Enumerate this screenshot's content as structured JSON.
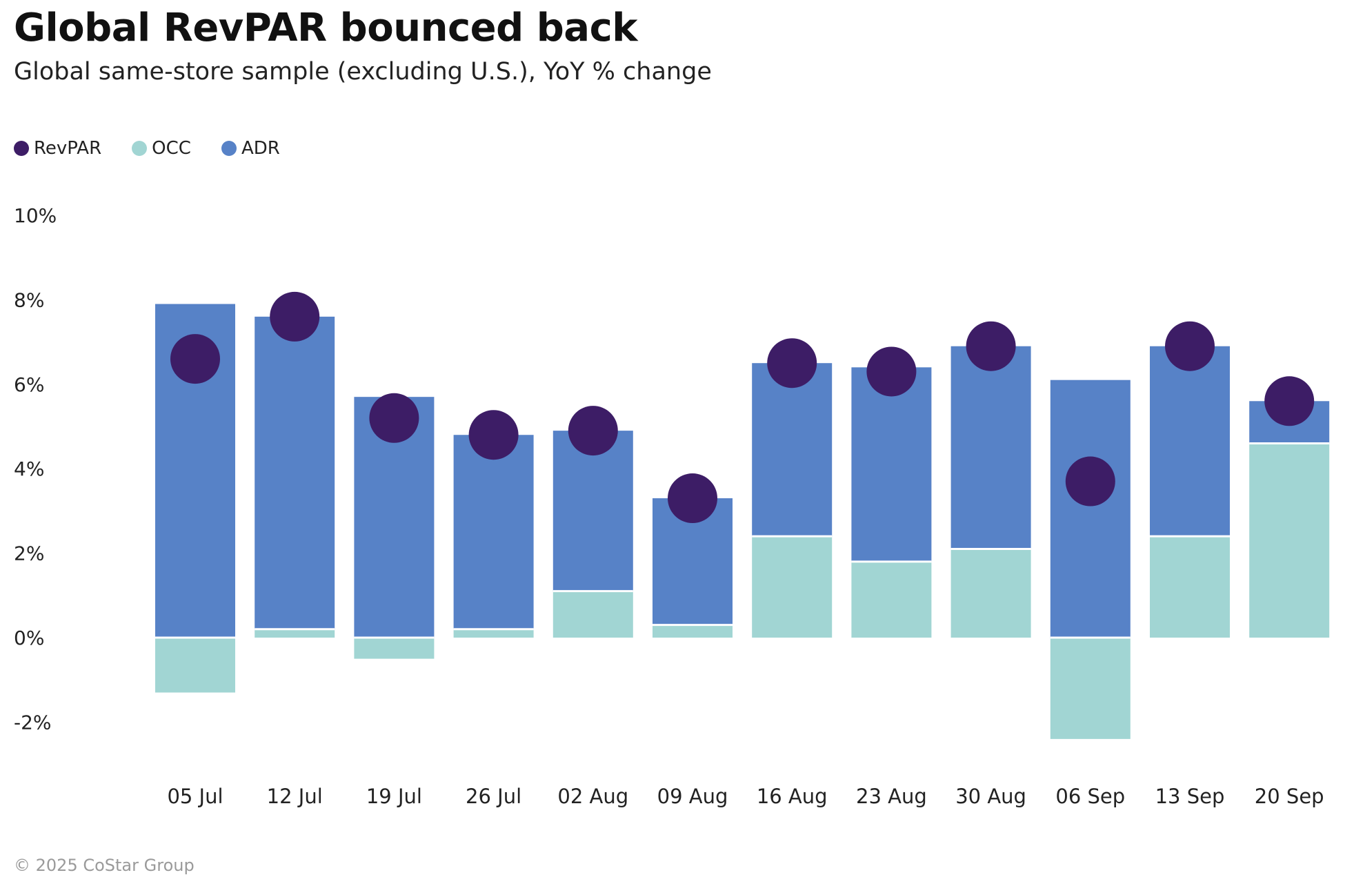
{
  "title": "Global RevPAR bounced back",
  "subtitle": "Global same-store sample (excluding U.S.), YoY % change",
  "footer": "© 2025 CoStar Group",
  "colors": {
    "revpar": "#3d1d66",
    "occ": "#a1d5d3",
    "adr": "#5782c7"
  },
  "legend": [
    {
      "label": "RevPAR",
      "color": "#3d1d66"
    },
    {
      "label": "OCC",
      "color": "#a1d5d3"
    },
    {
      "label": "ADR",
      "color": "#5782c7"
    }
  ],
  "chart_data": {
    "type": "bar",
    "stacked": true,
    "categories": [
      "05 Jul",
      "12 Jul",
      "19 Jul",
      "26 Jul",
      "02 Aug",
      "09 Aug",
      "16 Aug",
      "23 Aug",
      "30 Aug",
      "06 Sep",
      "13 Sep",
      "20 Sep"
    ],
    "series": [
      {
        "name": "OCC",
        "kind": "bar",
        "values": [
          -1.3,
          0.2,
          -0.5,
          0.2,
          1.1,
          0.3,
          2.4,
          1.8,
          2.1,
          -2.4,
          2.4,
          4.6
        ]
      },
      {
        "name": "ADR",
        "kind": "bar",
        "values": [
          7.9,
          7.4,
          5.7,
          4.6,
          3.8,
          3.0,
          4.1,
          4.6,
          4.8,
          6.1,
          4.5,
          1.0
        ]
      },
      {
        "name": "RevPAR",
        "kind": "dot",
        "values": [
          6.6,
          7.6,
          5.2,
          4.8,
          4.9,
          3.3,
          6.5,
          6.3,
          6.9,
          3.7,
          6.9,
          5.6
        ]
      }
    ],
    "yticks": [
      "10%",
      "8%",
      "6%",
      "4%",
      "2%",
      "0%",
      "-2%"
    ],
    "ytick_values": [
      10,
      8,
      6,
      4,
      2,
      0,
      -2
    ],
    "ylim": [
      -3,
      10
    ],
    "xlabel": "",
    "ylabel": "",
    "grid": false,
    "legend_position": "top-left"
  }
}
